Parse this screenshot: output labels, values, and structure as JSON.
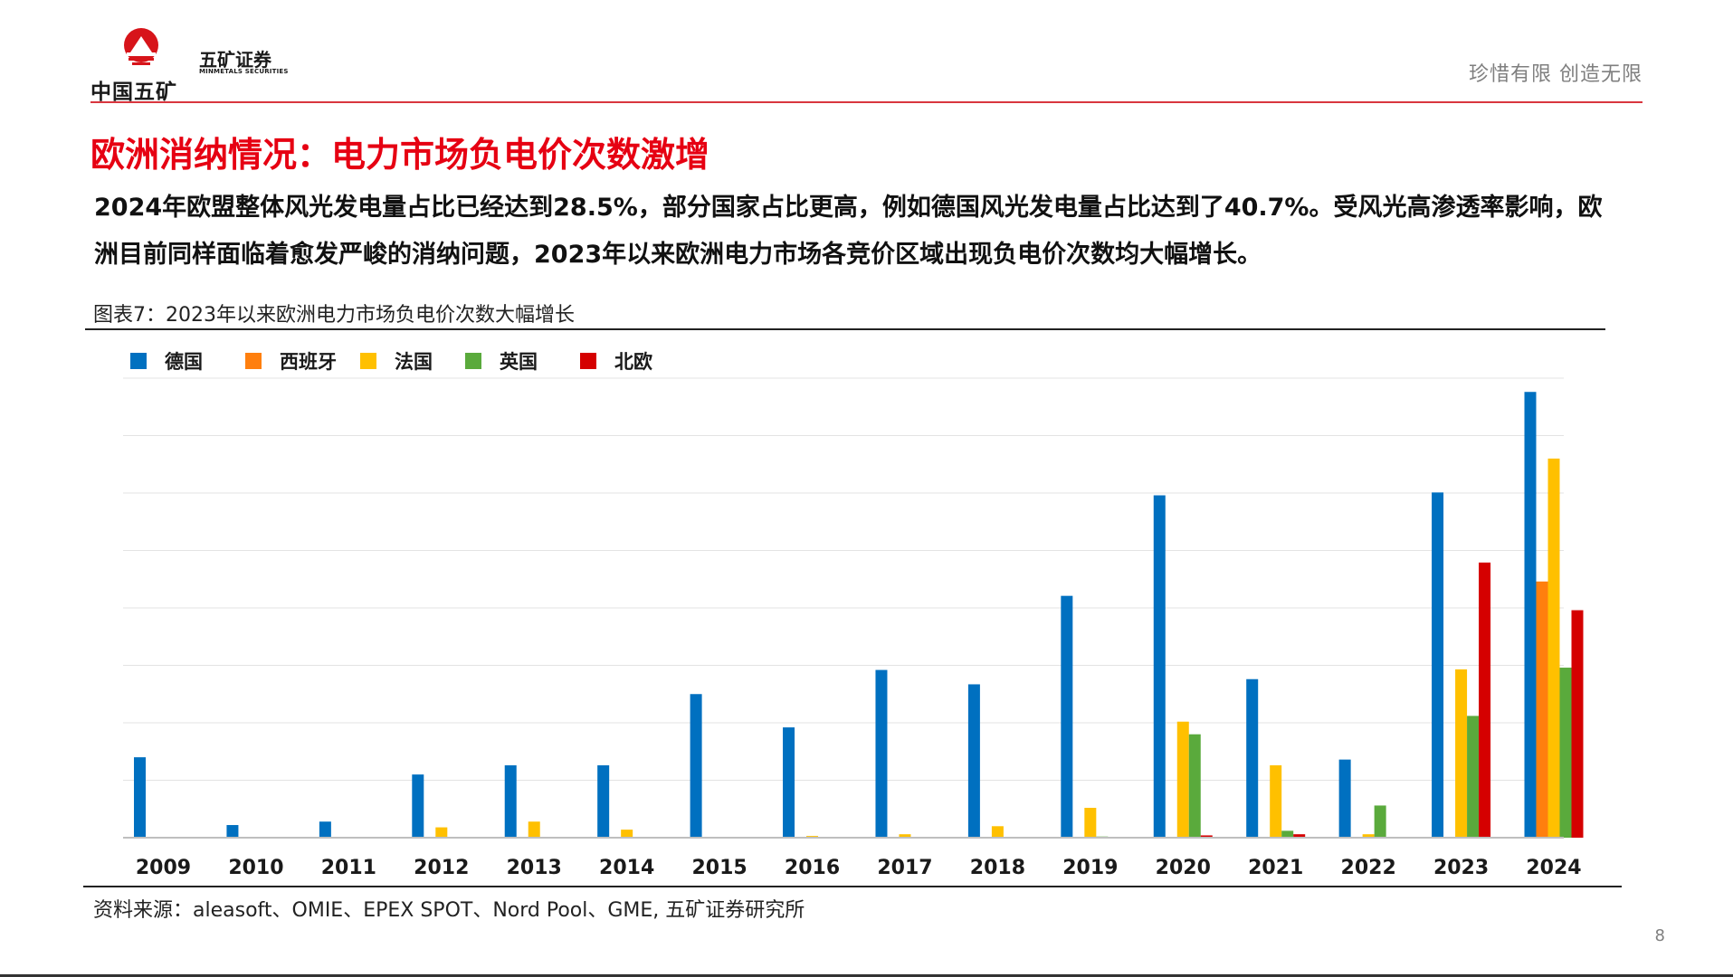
{
  "header": {
    "logo_left_text": "中国五矿",
    "logo_right_cn": "五矿证券",
    "logo_right_en": "MINMETALS SECURITIES",
    "slogan": "珍惜有限  创造无限"
  },
  "slide": {
    "title": "欧洲消纳情况：电力市场负电价次数激增",
    "body_line1": "2024年欧盟整体风光发电量占比已经达到28.5%，部分国家占比更高，例如德国风光发电量占比达到了40.7%。受风光高渗透率影响，欧",
    "body_line2": "洲目前同样面临着愈发严峻的消纳问题，2023年以来欧洲电力市场各竞价区域出现负电价次数均大幅增长。",
    "figure_caption": "图表7：2023年以来欧洲电力市场负电价次数大幅增长",
    "source": "资料来源：aleasoft、OMIE、EPEX SPOT、Nord Pool、GME, 五矿证券研究所",
    "page_number": "8"
  },
  "colors": {
    "accent": "#e60012",
    "rule": "#d9363e"
  },
  "chart_data": {
    "type": "bar",
    "title": "",
    "xlabel": "",
    "ylabel": "",
    "ylim": [
      0,
      800
    ],
    "grid": true,
    "legend_position": "top-left",
    "categories": [
      "2009",
      "2010",
      "2011",
      "2012",
      "2013",
      "2014",
      "2015",
      "2016",
      "2017",
      "2018",
      "2019",
      "2020",
      "2021",
      "2022",
      "2023",
      "2024"
    ],
    "series": [
      {
        "name": "德国",
        "color": "#0070c0",
        "values": [
          140,
          22,
          28,
          110,
          126,
          126,
          250,
          192,
          292,
          267,
          421,
          596,
          276,
          136,
          601,
          776
        ]
      },
      {
        "name": "西班牙",
        "color": "#ff7f0e",
        "values": [
          0,
          0,
          0,
          0,
          0,
          0,
          0,
          0,
          0,
          0,
          0,
          0,
          0,
          0,
          0,
          446
        ]
      },
      {
        "name": "法国",
        "color": "#ffc000",
        "values": [
          0,
          0,
          0,
          18,
          28,
          14,
          0,
          3,
          6,
          20,
          52,
          202,
          126,
          6,
          293,
          660
        ]
      },
      {
        "name": "英国",
        "color": "#5aaa3c",
        "values": [
          0,
          0,
          0,
          0,
          0,
          0,
          0,
          0,
          0,
          0,
          2,
          180,
          12,
          56,
          212,
          296
        ]
      },
      {
        "name": "北欧",
        "color": "#d50000",
        "values": [
          0,
          0,
          0,
          0,
          0,
          0,
          0,
          0,
          0,
          0,
          0,
          4,
          6,
          0,
          479,
          396
        ]
      }
    ]
  }
}
